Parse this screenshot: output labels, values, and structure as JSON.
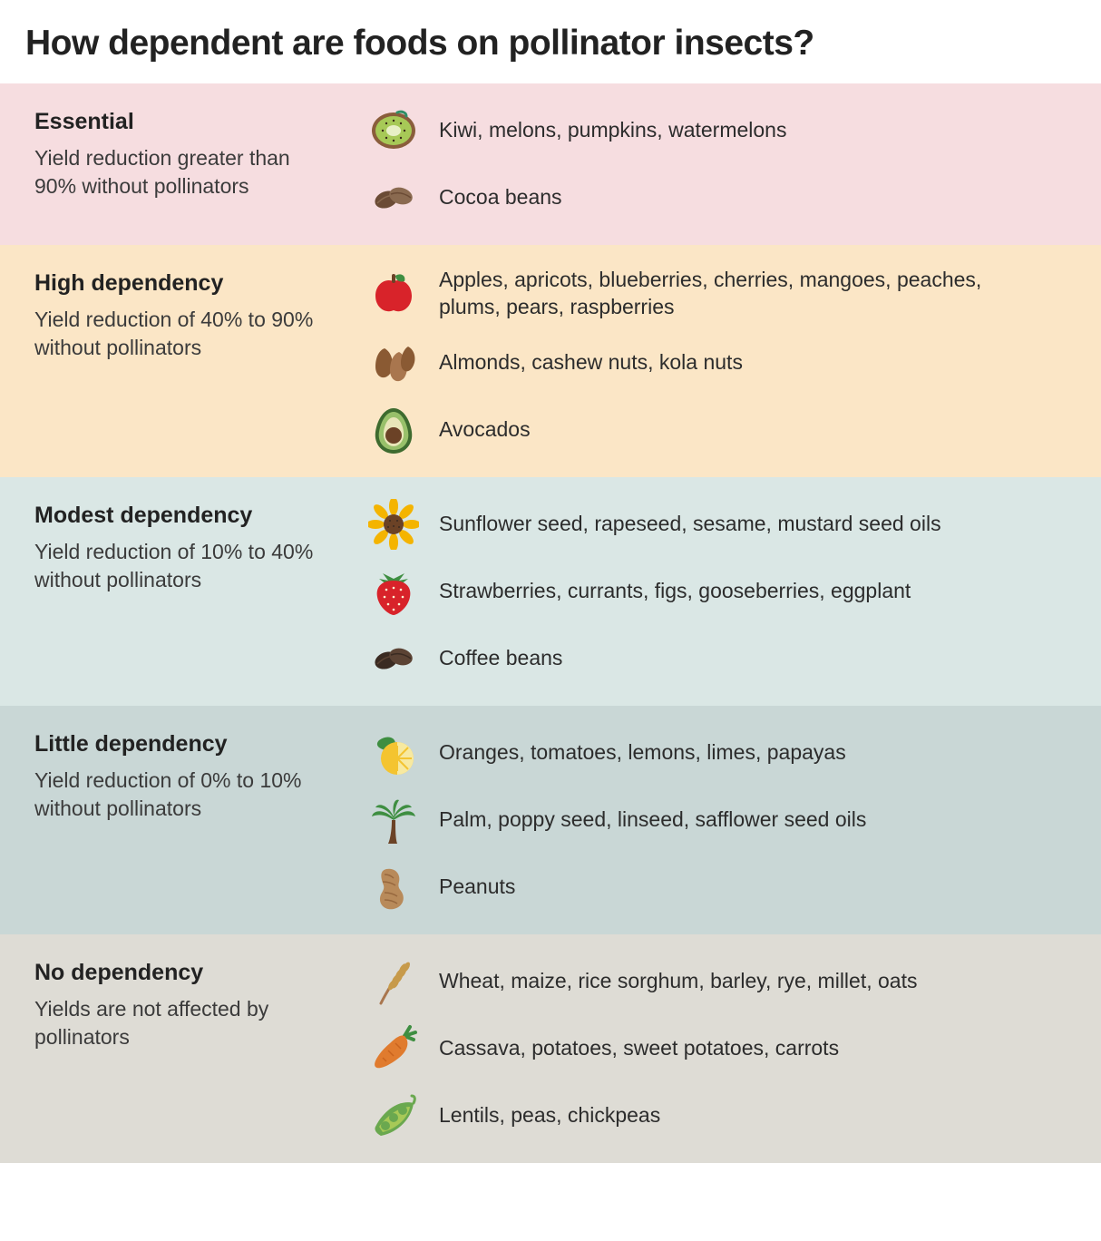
{
  "title": "How dependent are foods on pollinator insects?",
  "title_fontsize": 39,
  "body_fontsize": 23,
  "subtitle_fontsize": 25,
  "text_color": "#2c2c2c",
  "background_color": "#ffffff",
  "categories": [
    {
      "id": "essential",
      "title": "Essential",
      "subtitle": "Yield reduction greater than 90% without pollinators",
      "bgcolor": "#f6dde0",
      "rows": [
        {
          "icon": "kiwi",
          "text": "Kiwi, melons, pumpkins, watermelons"
        },
        {
          "icon": "cocoa",
          "text": "Cocoa beans"
        }
      ]
    },
    {
      "id": "high",
      "title": "High dependency",
      "subtitle": "Yield reduction of 40% to 90% without pollinators",
      "bgcolor": "#fbe6c6",
      "rows": [
        {
          "icon": "apple",
          "text": "Apples, apricots, blueberries, cherries, mangoes, peaches, plums, pears, raspberries"
        },
        {
          "icon": "almond",
          "text": "Almonds, cashew nuts, kola nuts"
        },
        {
          "icon": "avocado",
          "text": "Avocados"
        }
      ]
    },
    {
      "id": "modest",
      "title": "Modest dependency",
      "subtitle": "Yield reduction of 10% to 40% without pollinators",
      "bgcolor": "#dae7e5",
      "rows": [
        {
          "icon": "sunflower",
          "text": "Sunflower seed, rapeseed, sesame, mustard seed oils"
        },
        {
          "icon": "strawberry",
          "text": "Strawberries, currants, figs, gooseberries, eggplant"
        },
        {
          "icon": "coffee",
          "text": "Coffee beans"
        }
      ]
    },
    {
      "id": "little",
      "title": "Little dependency",
      "subtitle": "Yield reduction of 0% to 10% without pollinators",
      "bgcolor": "#c9d7d6",
      "rows": [
        {
          "icon": "lemon",
          "text": "Oranges, tomatoes, lemons, limes, papayas"
        },
        {
          "icon": "palm",
          "text": "Palm, poppy seed, linseed, safflower seed oils"
        },
        {
          "icon": "peanut",
          "text": "Peanuts"
        }
      ]
    },
    {
      "id": "none",
      "title": "No dependency",
      "subtitle": "Yields are not affected by pollinators",
      "bgcolor": "#dedcd5",
      "rows": [
        {
          "icon": "wheat",
          "text": "Wheat, maize, rice sorghum, barley, rye, millet, oats"
        },
        {
          "icon": "carrot",
          "text": "Cassava, potatoes, sweet potatoes, carrots"
        },
        {
          "icon": "pea",
          "text": "Lentils, peas, chickpeas"
        }
      ]
    }
  ],
  "icons": {
    "kiwi": {
      "colors": [
        "#8a5d3b",
        "#a7c957",
        "#e8f0c6",
        "#3b2b1a",
        "#2f8f66"
      ]
    },
    "cocoa": {
      "colors": [
        "#6b4b35",
        "#8a6a50"
      ]
    },
    "apple": {
      "colors": [
        "#d8232a",
        "#6b4226",
        "#3e8e41"
      ]
    },
    "almond": {
      "colors": [
        "#8a5a33",
        "#a9764e"
      ]
    },
    "avocado": {
      "colors": [
        "#3e6b2f",
        "#98c06a",
        "#e8e6b8",
        "#6b4226"
      ]
    },
    "sunflower": {
      "colors": [
        "#f4b400",
        "#6b4226",
        "#3e8e41"
      ]
    },
    "strawberry": {
      "colors": [
        "#d8232a",
        "#3e8e41",
        "#fff7d6"
      ]
    },
    "coffee": {
      "colors": [
        "#3a2b22",
        "#5b4334"
      ]
    },
    "lemon": {
      "colors": [
        "#f4c430",
        "#f7e9a0",
        "#3e8e41"
      ]
    },
    "palm": {
      "colors": [
        "#3e8e41",
        "#6b4226"
      ]
    },
    "peanut": {
      "colors": [
        "#b88a5a",
        "#8a5a33"
      ]
    },
    "wheat": {
      "colors": [
        "#c79a4a",
        "#a9764e"
      ]
    },
    "carrot": {
      "colors": [
        "#e07b2e",
        "#3e8e41"
      ]
    },
    "pea": {
      "colors": [
        "#6aa84f",
        "#a7c957"
      ]
    }
  }
}
